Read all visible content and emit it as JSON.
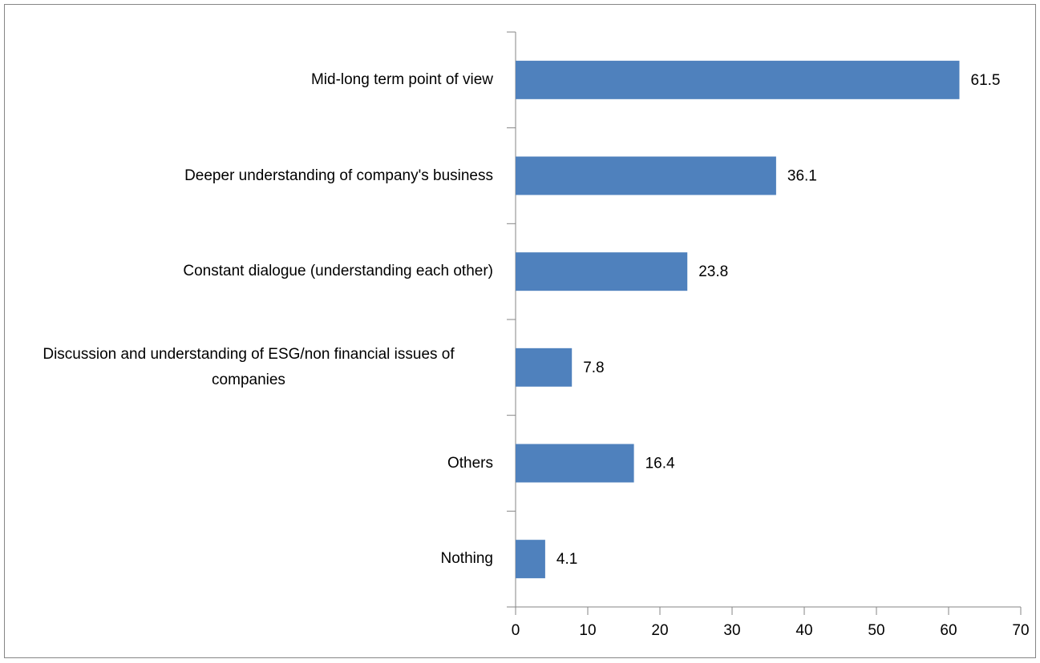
{
  "chart_data": {
    "type": "barh",
    "categories": [
      "Mid-long term point of view",
      "Deeper understanding of company's business",
      "Constant dialogue (understanding each other)",
      "Discussion and understanding of ESG/non financial issues of companies",
      "Others",
      "Nothing"
    ],
    "values": [
      61.5,
      36.1,
      23.8,
      7.8,
      16.4,
      4.1
    ],
    "color": "#4f81bd",
    "xlim": [
      0,
      70
    ],
    "xticks": [
      0,
      10,
      20,
      30,
      40,
      50,
      60,
      70
    ],
    "grid": false
  }
}
